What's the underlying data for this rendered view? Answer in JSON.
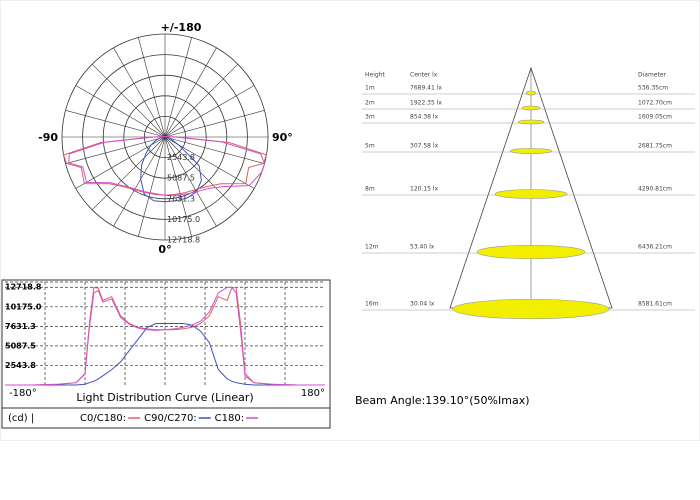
{
  "chart_data": [
    {
      "type": "polar",
      "angle_labels": [
        "+/-180",
        "-90",
        "90°",
        "0°"
      ],
      "rlim": [
        0,
        12718.8
      ],
      "rticks": [
        2543.8,
        5087.5,
        7631.3,
        {
          "value": 10175,
          "label": "10175.0"
        },
        12718.8
      ]
    },
    {
      "type": "line",
      "title": "Light Distribution Curve (Linear)",
      "unit": "(cd) |",
      "x": [
        -180,
        -150,
        -120,
        -100,
        -90,
        -85,
        -80,
        -75,
        -70,
        -60,
        -50,
        -40,
        -30,
        -20,
        -10,
        0,
        10,
        20,
        30,
        40,
        50,
        60,
        70,
        75,
        80,
        85,
        90,
        100,
        120,
        150,
        180
      ],
      "series": [
        {
          "name": "C0/C180:",
          "color": "#e06060",
          "values": [
            0,
            0,
            100,
            300,
            1500,
            8000,
            12700,
            12600,
            11000,
            11500,
            9000,
            8000,
            7500,
            7300,
            7200,
            7200,
            7200,
            7300,
            7500,
            8000,
            9000,
            11500,
            11000,
            12600,
            12700,
            8000,
            1500,
            300,
            100,
            0,
            0
          ]
        },
        {
          "name": "C90/C270:",
          "color": "#4050c0",
          "values": [
            0,
            0,
            0,
            0,
            100,
            300,
            500,
            800,
            1200,
            2000,
            3000,
            4500,
            6000,
            7500,
            8000,
            8000,
            8000,
            8000,
            7800,
            7000,
            5500,
            2000,
            800,
            500,
            300,
            200,
            100,
            0,
            0,
            0,
            0
          ]
        },
        {
          "name": "C180:",
          "color": "#d050d0",
          "values": [
            0,
            0,
            100,
            300,
            1400,
            7500,
            12000,
            12300,
            10800,
            11200,
            8800,
            7900,
            7400,
            7200,
            7100,
            7200,
            7300,
            7500,
            7800,
            8300,
            9500,
            12000,
            12700,
            12718.8,
            12000,
            7000,
            1200,
            300,
            100,
            0,
            0
          ]
        }
      ],
      "xlim": [
        -180,
        180
      ],
      "xticks": [
        {
          "value": -180,
          "label": "-180°"
        },
        {
          "value": 180,
          "label": "180°"
        }
      ],
      "ylim": [
        0,
        13400
      ],
      "yticks": [
        2543.8,
        5087.5,
        7631.3,
        {
          "value": 10175,
          "label": "10175.0"
        },
        12718.8
      ],
      "grid": true
    }
  ],
  "cone": {
    "headers": [
      "Height",
      "Center lx",
      "Diameter"
    ],
    "rows": [
      [
        "1m",
        "7689.41 lx",
        "536.35cm"
      ],
      [
        "2m",
        "1922.35 lx",
        "1072.70cm"
      ],
      [
        "3m",
        "854.38 lx",
        "1609.05cm"
      ],
      [
        "5m",
        "307.58 lx",
        "2681.75cm"
      ],
      [
        "8m",
        "120.15 lx",
        "4290.81cm"
      ],
      [
        "12m",
        "53.40 lx",
        "6436.21cm"
      ],
      [
        "16m",
        "30.04 lx",
        "8581.61cm"
      ]
    ],
    "beam_angle": "Beam Angle:139.10°(50%Imax)"
  }
}
